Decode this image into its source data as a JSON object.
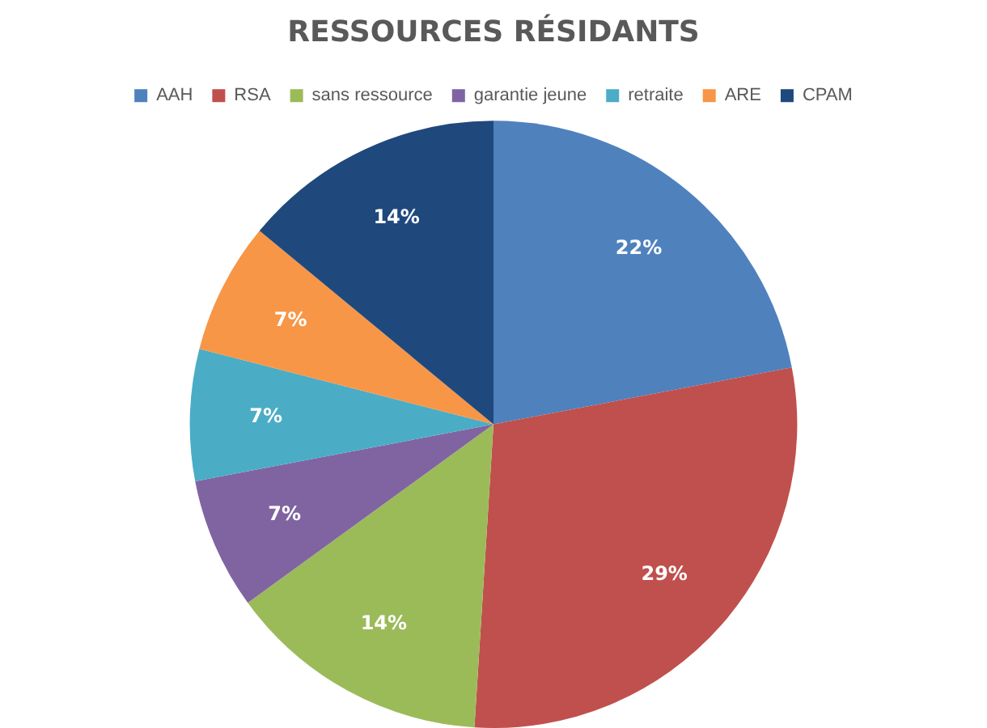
{
  "chart_data": {
    "type": "pie",
    "title": "RESSOURCES RÉSIDANTS",
    "categories": [
      "AAH",
      "RSA",
      "sans ressource",
      "garantie jeune",
      "retraite",
      "ARE",
      "CPAM"
    ],
    "values": [
      22,
      29,
      14,
      7,
      7,
      7,
      14
    ],
    "colors": [
      "#4f81bd",
      "#c0504d",
      "#9bbb59",
      "#8064a2",
      "#4bacc6",
      "#f79646",
      "#1f497d"
    ],
    "data_labels": true,
    "value_labels": [
      "22%",
      "29%",
      "14%",
      "7%",
      "7%",
      "7%",
      "14%"
    ],
    "legend": "top"
  }
}
